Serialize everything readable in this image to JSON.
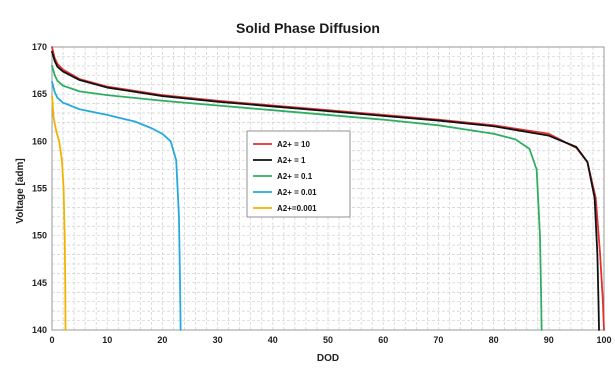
{
  "chart_data": {
    "type": "line",
    "title": "Solid Phase Diffusion",
    "xlabel": "DOD",
    "ylabel": "Voltage [adm]",
    "xlim": [
      0,
      100
    ],
    "ylim": [
      140,
      170
    ],
    "xticks": [
      "0",
      "10",
      "20",
      "30",
      "40",
      "50",
      "60",
      "70",
      "80",
      "90",
      "100"
    ],
    "yticks": [
      "140",
      "145",
      "150",
      "155",
      "160",
      "165",
      "170"
    ],
    "grid": true,
    "legend_position": "center-left",
    "series": [
      {
        "name": "A2+ = 10",
        "color": "#e03030",
        "x": [
          0,
          0.5,
          1,
          2,
          5,
          10,
          20,
          30,
          40,
          50,
          60,
          70,
          80,
          90,
          95,
          97,
          98.5,
          99.3,
          99.8,
          100
        ],
        "y": [
          170,
          168.8,
          168.2,
          167.6,
          166.6,
          165.8,
          164.9,
          164.3,
          163.8,
          163.3,
          162.8,
          162.3,
          161.7,
          160.8,
          159.3,
          157.8,
          154,
          148,
          143,
          140
        ]
      },
      {
        "name": "A2+ = 1",
        "color": "#111111",
        "x": [
          0,
          0.5,
          1,
          2,
          5,
          10,
          20,
          30,
          40,
          50,
          60,
          70,
          80,
          90,
          95,
          97,
          98.3,
          98.8,
          99,
          99.1
        ],
        "y": [
          169.5,
          168.5,
          167.9,
          167.4,
          166.5,
          165.7,
          164.8,
          164.2,
          163.7,
          163.2,
          162.7,
          162.2,
          161.6,
          160.6,
          159.4,
          157.8,
          154,
          148,
          143,
          140
        ]
      },
      {
        "name": "A2+ = 0.1",
        "color": "#2fae60",
        "x": [
          0,
          0.5,
          1,
          2,
          5,
          10,
          20,
          30,
          40,
          50,
          60,
          70,
          80,
          84,
          86.5,
          87.8,
          88.4,
          88.6,
          88.7
        ],
        "y": [
          168,
          167,
          166.4,
          165.9,
          165.3,
          164.9,
          164.3,
          163.8,
          163.3,
          162.8,
          162.3,
          161.7,
          160.8,
          160.2,
          159.2,
          157,
          150,
          144,
          140
        ]
      },
      {
        "name": "A2+ = 0.01",
        "color": "#26a9de",
        "x": [
          0,
          0.5,
          1,
          2,
          5,
          10,
          15,
          18,
          20,
          21.5,
          22.5,
          23,
          23.2,
          23.3
        ],
        "y": [
          166.3,
          165.2,
          164.6,
          164.1,
          163.4,
          162.8,
          162.1,
          161.4,
          160.8,
          160,
          158,
          152,
          145,
          140
        ]
      },
      {
        "name": "A2+=0.001",
        "color": "#f0b400",
        "x": [
          0,
          0.3,
          0.8,
          1.3,
          1.8,
          2.1,
          2.3,
          2.4,
          2.45
        ],
        "y": [
          164.8,
          162.5,
          161,
          160,
          158,
          155,
          150,
          145,
          140
        ]
      }
    ]
  }
}
